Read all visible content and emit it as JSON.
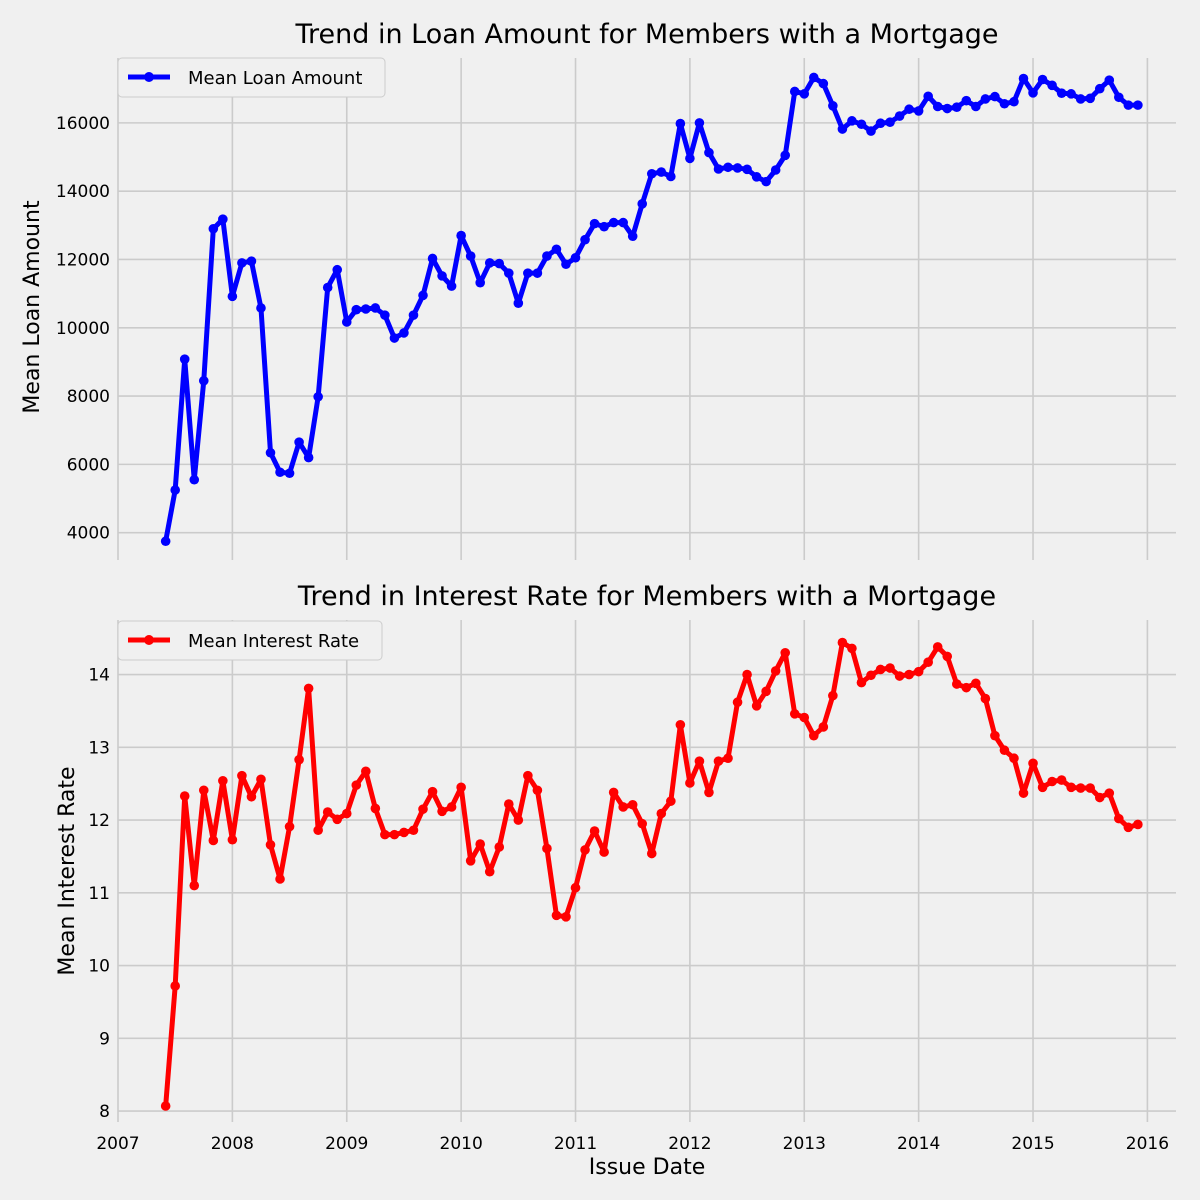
{
  "chart_data": [
    {
      "type": "line",
      "title": "Trend in Loan Amount for Members with a Mortgage",
      "xlabel": "",
      "ylabel": "Mean Loan Amount",
      "x_axis_type": "date (monthly)",
      "xlim": [
        "2007-01",
        "2016-04"
      ],
      "ylim": [
        3200,
        17900
      ],
      "yticks": [
        4000,
        6000,
        8000,
        10000,
        12000,
        14000,
        16000
      ],
      "xticks": [
        "2007",
        "2008",
        "2009",
        "2010",
        "2011",
        "2012",
        "2013",
        "2014",
        "2015",
        "2016"
      ],
      "grid": true,
      "legend_position": "top-left",
      "series": [
        {
          "name": "Mean Loan Amount",
          "color": "#0000ff",
          "marker": "circle",
          "x": [
            "2007-06",
            "2007-07",
            "2007-08",
            "2007-09",
            "2007-10",
            "2007-11",
            "2007-12",
            "2008-01",
            "2008-02",
            "2008-03",
            "2008-04",
            "2008-05",
            "2008-06",
            "2008-07",
            "2008-08",
            "2008-09",
            "2008-10",
            "2008-11",
            "2008-12",
            "2009-01",
            "2009-02",
            "2009-03",
            "2009-04",
            "2009-05",
            "2009-06",
            "2009-07",
            "2009-08",
            "2009-09",
            "2009-10",
            "2009-11",
            "2009-12",
            "2010-01",
            "2010-02",
            "2010-03",
            "2010-04",
            "2010-05",
            "2010-06",
            "2010-07",
            "2010-08",
            "2010-09",
            "2010-10",
            "2010-11",
            "2010-12",
            "2011-01",
            "2011-02",
            "2011-03",
            "2011-04",
            "2011-05",
            "2011-06",
            "2011-07",
            "2011-08",
            "2011-09",
            "2011-10",
            "2011-11",
            "2011-12",
            "2012-01",
            "2012-02",
            "2012-03",
            "2012-04",
            "2012-05",
            "2012-06",
            "2012-07",
            "2012-08",
            "2012-09",
            "2012-10",
            "2012-11",
            "2012-12",
            "2013-01",
            "2013-02",
            "2013-03",
            "2013-04",
            "2013-05",
            "2013-06",
            "2013-07",
            "2013-08",
            "2013-09",
            "2013-10",
            "2013-11",
            "2013-12",
            "2014-01",
            "2014-02",
            "2014-03",
            "2014-04",
            "2014-05",
            "2014-06",
            "2014-07",
            "2014-08",
            "2014-09",
            "2014-10",
            "2014-11",
            "2014-12",
            "2015-01",
            "2015-02",
            "2015-03",
            "2015-04",
            "2015-05",
            "2015-06",
            "2015-07",
            "2015-08",
            "2015-09",
            "2015-10",
            "2015-11",
            "2015-12"
          ],
          "values": [
            3750,
            5250,
            9080,
            5550,
            8450,
            12900,
            13180,
            10920,
            11900,
            11950,
            10580,
            6340,
            5770,
            5740,
            6650,
            6200,
            7980,
            11180,
            11700,
            10170,
            10530,
            10550,
            10580,
            10370,
            9700,
            9850,
            10370,
            10950,
            12030,
            11520,
            11220,
            12700,
            12100,
            11320,
            11900,
            11880,
            11600,
            10720,
            11600,
            11600,
            12100,
            12300,
            11860,
            12050,
            12580,
            13050,
            12960,
            13080,
            13080,
            12680,
            13630,
            14510,
            14560,
            14430,
            15980,
            14960,
            16000,
            15130,
            14650,
            14700,
            14680,
            14640,
            14420,
            14280,
            14620,
            15050,
            16920,
            16850,
            17330,
            17150,
            16500,
            15820,
            16060,
            15960,
            15760,
            15990,
            16020,
            16200,
            16400,
            16350,
            16780,
            16480,
            16420,
            16460,
            16650,
            16480,
            16700,
            16770,
            16560,
            16620,
            17300,
            16880,
            17270,
            17100,
            16870,
            16850,
            16700,
            16720,
            17000,
            17250,
            16750,
            16520,
            16520
          ]
        }
      ]
    },
    {
      "type": "line",
      "title": "Trend in Interest Rate for Members with a Mortgage",
      "xlabel": "Issue Date",
      "ylabel": "Mean Interest Rate",
      "x_axis_type": "date (monthly)",
      "xlim": [
        "2007-01",
        "2016-04"
      ],
      "ylim": [
        7.85,
        14.75
      ],
      "yticks": [
        8,
        9,
        10,
        11,
        12,
        13,
        14
      ],
      "xticks": [
        "2007",
        "2008",
        "2009",
        "2010",
        "2011",
        "2012",
        "2013",
        "2014",
        "2015",
        "2016"
      ],
      "grid": true,
      "legend_position": "top-left",
      "series": [
        {
          "name": "Mean Interest Rate",
          "color": "#ff0000",
          "marker": "circle",
          "x": [
            "2007-06",
            "2007-07",
            "2007-08",
            "2007-09",
            "2007-10",
            "2007-11",
            "2007-12",
            "2008-01",
            "2008-02",
            "2008-03",
            "2008-04",
            "2008-05",
            "2008-06",
            "2008-07",
            "2008-08",
            "2008-09",
            "2008-10",
            "2008-11",
            "2008-12",
            "2009-01",
            "2009-02",
            "2009-03",
            "2009-04",
            "2009-05",
            "2009-06",
            "2009-07",
            "2009-08",
            "2009-09",
            "2009-10",
            "2009-11",
            "2009-12",
            "2010-01",
            "2010-02",
            "2010-03",
            "2010-04",
            "2010-05",
            "2010-06",
            "2010-07",
            "2010-08",
            "2010-09",
            "2010-10",
            "2010-11",
            "2010-12",
            "2011-01",
            "2011-02",
            "2011-03",
            "2011-04",
            "2011-05",
            "2011-06",
            "2011-07",
            "2011-08",
            "2011-09",
            "2011-10",
            "2011-11",
            "2011-12",
            "2012-01",
            "2012-02",
            "2012-03",
            "2012-04",
            "2012-05",
            "2012-06",
            "2012-07",
            "2012-08",
            "2012-09",
            "2012-10",
            "2012-11",
            "2012-12",
            "2013-01",
            "2013-02",
            "2013-03",
            "2013-04",
            "2013-05",
            "2013-06",
            "2013-07",
            "2013-08",
            "2013-09",
            "2013-10",
            "2013-11",
            "2013-12",
            "2014-01",
            "2014-02",
            "2014-03",
            "2014-04",
            "2014-05",
            "2014-06",
            "2014-07",
            "2014-08",
            "2014-09",
            "2014-10",
            "2014-11",
            "2014-12",
            "2015-01",
            "2015-02",
            "2015-03",
            "2015-04",
            "2015-05",
            "2015-06",
            "2015-07",
            "2015-08",
            "2015-09",
            "2015-10",
            "2015-11",
            "2015-12"
          ],
          "values": [
            8.07,
            9.72,
            12.33,
            11.1,
            12.41,
            11.72,
            12.54,
            11.73,
            12.61,
            12.32,
            12.56,
            11.66,
            11.19,
            11.91,
            12.83,
            13.81,
            11.86,
            12.11,
            12.01,
            12.09,
            12.48,
            12.67,
            12.16,
            11.8,
            11.8,
            11.83,
            11.86,
            12.15,
            12.39,
            12.12,
            12.18,
            12.45,
            11.44,
            11.67,
            11.29,
            11.63,
            12.22,
            12.0,
            12.61,
            12.41,
            11.61,
            10.69,
            10.67,
            11.07,
            11.59,
            11.85,
            11.56,
            12.38,
            12.18,
            12.21,
            11.95,
            11.54,
            12.09,
            12.26,
            13.31,
            12.51,
            12.81,
            12.38,
            12.81,
            12.85,
            13.62,
            14.0,
            13.57,
            13.77,
            14.05,
            14.3,
            13.46,
            13.41,
            13.16,
            13.28,
            13.71,
            14.44,
            14.36,
            13.89,
            13.99,
            14.07,
            14.09,
            13.98,
            14.0,
            14.04,
            14.17,
            14.38,
            14.25,
            13.87,
            13.82,
            13.88,
            13.67,
            13.16,
            12.96,
            12.85,
            12.37,
            12.78,
            12.45,
            12.53,
            12.55,
            12.45,
            12.44,
            12.44,
            12.31,
            12.37,
            12.02,
            11.9,
            11.94
          ]
        }
      ]
    }
  ]
}
